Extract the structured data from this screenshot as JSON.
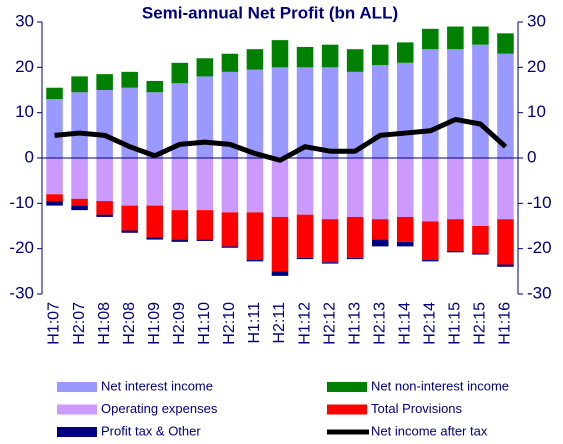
{
  "chart_data": {
    "type": "bar",
    "stacked": true,
    "title": "Semi-annual Net Profit (bn ALL)",
    "categories": [
      "H1:07",
      "H2:07",
      "H1:08",
      "H2:08",
      "H1:09",
      "H2:09",
      "H1:10",
      "H2:10",
      "H1:11",
      "H2:11",
      "H1:12",
      "H2:12",
      "H1:13",
      "H2:13",
      "H1:14",
      "H2:14",
      "H1:15",
      "H2:15",
      "H1:16"
    ],
    "series": [
      {
        "name": "Net interest income",
        "color": "#9999ff",
        "values": [
          13,
          14.5,
          15,
          15.5,
          14.5,
          16.5,
          18,
          19,
          19.5,
          20,
          20,
          20,
          19,
          20.5,
          21,
          24,
          24,
          25,
          23
        ]
      },
      {
        "name": "Net non-interest income",
        "color": "#008000",
        "values": [
          2.5,
          3.5,
          3.5,
          3.5,
          2.5,
          4.5,
          4,
          4,
          4.5,
          6,
          4.5,
          5,
          5,
          4.5,
          4.5,
          4.5,
          5,
          4,
          4.5
        ]
      },
      {
        "name": "Operating expenses",
        "color": "#cc99ff",
        "values": [
          -8,
          -9,
          -9.5,
          -10.5,
          -10.5,
          -11.5,
          -11.5,
          -12,
          -12,
          -13,
          -12.5,
          -13.5,
          -13,
          -13.5,
          -13,
          -14,
          -13.5,
          -15,
          -13.5
        ]
      },
      {
        "name": "Total Provisions",
        "color": "#ff0000",
        "values": [
          -1.5,
          -1.5,
          -3,
          -5.5,
          -7,
          -6.5,
          -6.5,
          -7.5,
          -10.5,
          -12,
          -9.5,
          -9.5,
          -9,
          -4.5,
          -5.5,
          -8.5,
          -7,
          -6,
          -10
        ]
      },
      {
        "name": "Profit tax & Other",
        "color": "#000080",
        "values": [
          -1,
          -1,
          -0.5,
          -0.5,
          -0.5,
          -0.5,
          -0.3,
          -0.3,
          -0.3,
          -1,
          -0.3,
          -0.3,
          -0.3,
          -1.5,
          -1,
          -0.3,
          -0.3,
          -0.3,
          -0.5
        ]
      },
      {
        "name": "Net income after tax",
        "color": "#000000",
        "chart": "line",
        "values": [
          5,
          5.5,
          5,
          2.5,
          0.5,
          3,
          3.5,
          3,
          1,
          -0.5,
          2.5,
          1.5,
          1.5,
          5,
          5.5,
          6,
          8.5,
          7.5,
          2.5
        ]
      }
    ],
    "ylim": [
      -30,
      30
    ],
    "yticks": [
      -30,
      -20,
      -10,
      0,
      10,
      20,
      30
    ],
    "y2lim": [
      -30,
      30
    ],
    "y2ticks": [
      -30,
      -20,
      -10,
      0,
      10,
      20,
      30
    ]
  }
}
